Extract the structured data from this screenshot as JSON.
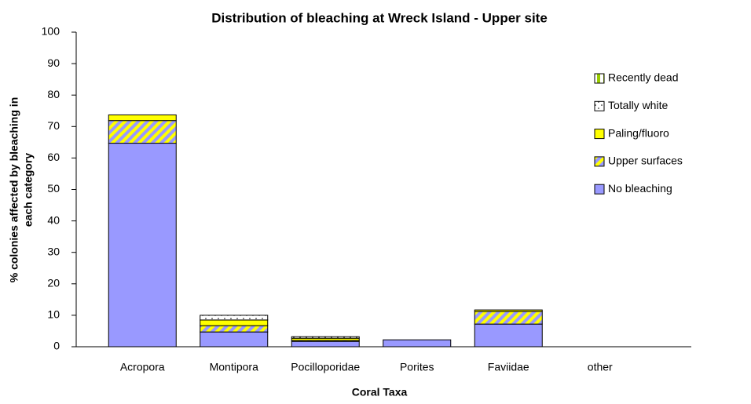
{
  "chart_data": {
    "type": "stacked_bar",
    "title": "Distribution of bleaching at Wreck Island - Upper site",
    "xlabel": "Coral Taxa",
    "ylabel": [
      "% colonies affected by bleaching in",
      "each category"
    ],
    "categories": [
      "Acropora",
      "Montipora",
      "Pocilloporidae",
      "Porites",
      "Faviidae",
      "other"
    ],
    "series": [
      {
        "name": "No bleaching",
        "color": "#9999ff",
        "values": [
          64.7,
          4.7,
          1.7,
          2.2,
          7.2,
          0
        ]
      },
      {
        "name": "Upper surfaces",
        "color": "#ffff00",
        "values": [
          7.2,
          2.0,
          0.3,
          0,
          4.0,
          0
        ]
      },
      {
        "name": "Paling/fluoro",
        "color": "#ffff00",
        "values": [
          1.8,
          1.8,
          0.7,
          0,
          0.5,
          0
        ]
      },
      {
        "name": "Totally white",
        "color": "#ffffff",
        "values": [
          0,
          1.5,
          0.5,
          0,
          0,
          0
        ]
      },
      {
        "name": "Recently dead",
        "color": "#99cc00",
        "values": [
          0,
          0,
          0,
          0,
          0,
          0
        ]
      }
    ],
    "ylim": [
      0,
      100
    ],
    "yticks": [
      0,
      10,
      20,
      30,
      40,
      50,
      60,
      70,
      80,
      90,
      100
    ],
    "legend": "right"
  }
}
